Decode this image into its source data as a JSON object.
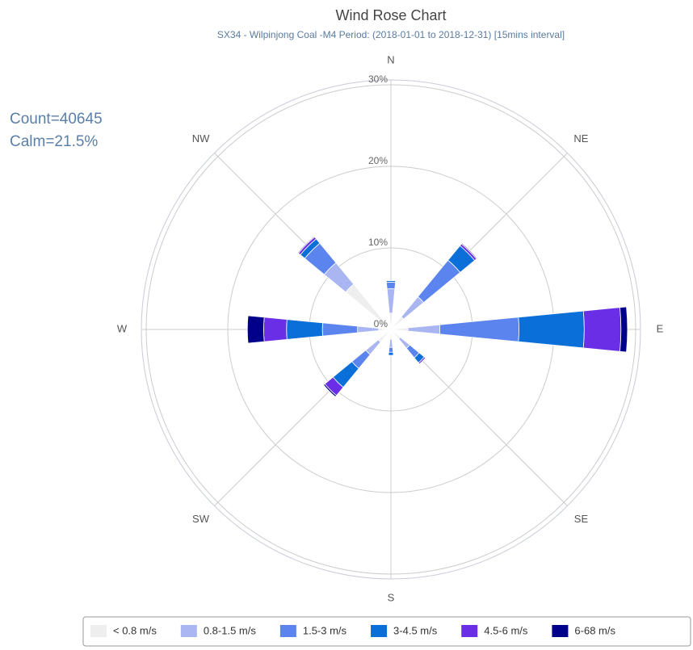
{
  "chart_data": {
    "type": "windrose",
    "title": "Wind Rose Chart",
    "subtitle": "SX34 - Wilpinjong Coal -M4 Period: (2018-01-01 to 2018-12-31) [15mins interval]",
    "annotations": [
      "Count=40645",
      "Calm=21.5%"
    ],
    "categories": [
      "N",
      "NE",
      "E",
      "SE",
      "S",
      "SW",
      "W",
      "NW"
    ],
    "series": [
      {
        "name": "< 0.8 m/s",
        "color": "#eeeeee",
        "values": [
          2.0,
          2.0,
          2.1,
          1.5,
          1.2,
          2.0,
          1.5,
          7.2
        ]
      },
      {
        "name": "0.8-1.5 m/s",
        "color": "#a9b6f2",
        "values": [
          3.0,
          3.2,
          3.9,
          1.5,
          1.0,
          2.0,
          2.6,
          3.4
        ]
      },
      {
        "name": "1.5-3 m/s",
        "color": "#5b84ee",
        "values": [
          0.8,
          5.8,
          9.7,
          1.5,
          0.6,
          2.2,
          4.3,
          3.1
        ]
      },
      {
        "name": "3-4.5 m/s",
        "color": "#0b6fd9",
        "values": [
          0.2,
          2.3,
          8.0,
          0.8,
          0.4,
          3.0,
          4.4,
          0.7
        ]
      },
      {
        "name": "4.5-6 m/s",
        "color": "#6a2ee6",
        "values": [
          0,
          0.3,
          4.5,
          0.2,
          0,
          1.3,
          2.8,
          0.3
        ]
      },
      {
        "name": "6-68 m/s",
        "color": "#00008b",
        "values": [
          0,
          0.1,
          0.8,
          0,
          0,
          0.2,
          2.0,
          0.1
        ]
      }
    ],
    "rlim": [
      0,
      30
    ],
    "rticks": [
      {
        "value": 0,
        "label": "0%"
      },
      {
        "value": 10,
        "label": "10%"
      },
      {
        "value": 20,
        "label": "20%"
      },
      {
        "value": 30,
        "label": "30%"
      }
    ],
    "grid": true
  }
}
